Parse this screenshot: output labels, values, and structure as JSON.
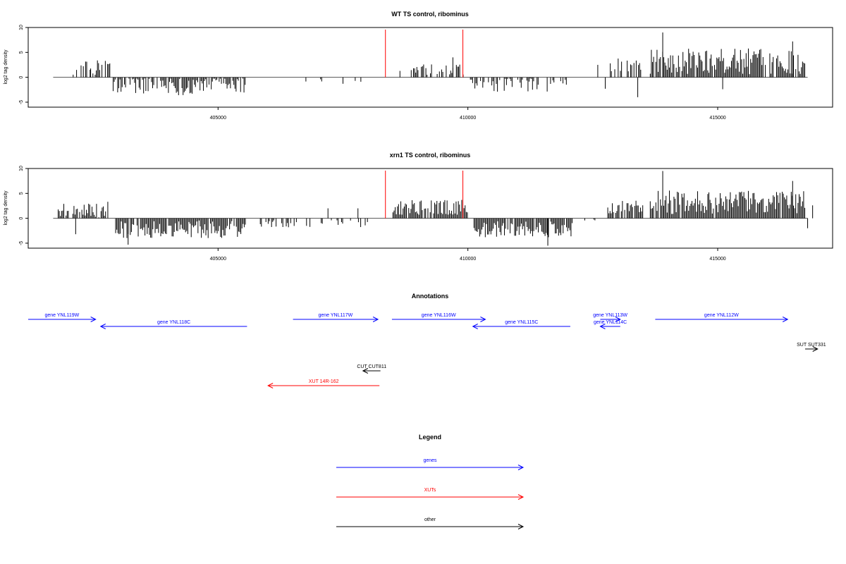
{
  "colors": {
    "gene": "#0000ff",
    "xut": "#ff0000",
    "other": "#000000",
    "marker": "#ff0000",
    "bars": "#000000"
  },
  "chart_data": [
    {
      "type": "bar",
      "title": "WT TS control, ribominus",
      "ylabel": "log2 tag density",
      "xlim": [
        401200,
        417300
      ],
      "ylim": [
        -6,
        10
      ],
      "xticks": [
        405000,
        410000,
        415000
      ],
      "yticks": [
        -5,
        0,
        5,
        10
      ],
      "markers_x": [
        408350,
        409900
      ],
      "segments": [
        {
          "start": 402100,
          "end": 402450,
          "mean": 1.5,
          "amp": 1.8,
          "density": 0.45
        },
        {
          "start": 402450,
          "end": 402850,
          "mean": 2.0,
          "amp": 1.5,
          "density": 0.6
        },
        {
          "start": 402900,
          "end": 405550,
          "mean": -1.6,
          "amp": 2.0,
          "density": 0.8
        },
        {
          "start": 406600,
          "end": 407300,
          "mean": -0.8,
          "amp": 0.6,
          "density": 0.15
        },
        {
          "start": 407700,
          "end": 408000,
          "mean": -0.8,
          "amp": 0.5,
          "density": 0.1
        },
        {
          "start": 408550,
          "end": 409950,
          "mean": 1.3,
          "amp": 1.4,
          "density": 0.45
        },
        {
          "start": 410050,
          "end": 410900,
          "mean": -1.4,
          "amp": 1.6,
          "density": 0.6
        },
        {
          "start": 411000,
          "end": 412000,
          "mean": -1.5,
          "amp": 1.4,
          "density": 0.55
        },
        {
          "start": 412850,
          "end": 413500,
          "mean": 2.2,
          "amp": 1.6,
          "density": 0.55
        },
        {
          "start": 413650,
          "end": 416750,
          "mean": 3.2,
          "amp": 2.6,
          "density": 0.9
        }
      ],
      "extra_bars": [
        [
          412600,
          2.5
        ],
        [
          412750,
          -2.3
        ],
        [
          413400,
          -4.0
        ],
        [
          413900,
          9.0
        ],
        [
          415100,
          -2.4
        ],
        [
          416500,
          7.2
        ],
        [
          409700,
          4.0
        ],
        [
          407500,
          -1.3
        ]
      ]
    },
    {
      "type": "bar",
      "title": "xrn1 TS control, ribominus",
      "ylabel": "log2 tag density",
      "xlim": [
        401200,
        417300
      ],
      "ylim": [
        -6,
        10
      ],
      "xticks": [
        405000,
        410000,
        415000
      ],
      "yticks": [
        -5,
        0,
        5,
        10
      ],
      "markers_x": [
        408350,
        409900
      ],
      "segments": [
        {
          "start": 401800,
          "end": 402800,
          "mean": 1.8,
          "amp": 1.6,
          "density": 0.9
        },
        {
          "start": 402950,
          "end": 405550,
          "mean": -2.2,
          "amp": 1.8,
          "density": 0.95
        },
        {
          "start": 405800,
          "end": 408000,
          "mean": -1.0,
          "amp": 0.8,
          "density": 0.3
        },
        {
          "start": 408500,
          "end": 410000,
          "mean": 2.2,
          "amp": 1.5,
          "density": 0.9
        },
        {
          "start": 410100,
          "end": 412100,
          "mean": -2.2,
          "amp": 1.6,
          "density": 0.95
        },
        {
          "start": 412250,
          "end": 412600,
          "mean": -0.8,
          "amp": 0.6,
          "density": 0.3
        },
        {
          "start": 412800,
          "end": 413500,
          "mean": 2.3,
          "amp": 1.3,
          "density": 0.9
        },
        {
          "start": 413650,
          "end": 416750,
          "mean": 3.2,
          "amp": 2.4,
          "density": 0.95
        }
      ],
      "extra_bars": [
        [
          402150,
          -3.2
        ],
        [
          403200,
          -5.3
        ],
        [
          407200,
          2.0
        ],
        [
          407800,
          2.0
        ],
        [
          413900,
          9.5
        ],
        [
          416500,
          7.5
        ],
        [
          416900,
          2.6
        ],
        [
          416800,
          -2.0
        ],
        [
          411600,
          -5.5
        ]
      ]
    }
  ],
  "annotations": {
    "title": "Annotations",
    "features": [
      {
        "label": "gene YNL119W",
        "start": 401200,
        "end": 402550,
        "strand": "+",
        "kind": "gene",
        "row": 0
      },
      {
        "label": "gene YNL118C",
        "start": 402650,
        "end": 405580,
        "strand": "-",
        "kind": "gene",
        "row": 1
      },
      {
        "label": "gene YNL117W",
        "start": 406500,
        "end": 408200,
        "strand": "+",
        "kind": "gene",
        "row": 0
      },
      {
        "label": "gene YNL116W",
        "start": 408480,
        "end": 410350,
        "strand": "+",
        "kind": "gene",
        "row": 0
      },
      {
        "label": "gene YNL115C",
        "start": 410100,
        "end": 412050,
        "strand": "-",
        "kind": "gene",
        "row": 1
      },
      {
        "label": "gene YNL113W",
        "start": 412650,
        "end": 413050,
        "strand": "+",
        "kind": "gene",
        "row": 0
      },
      {
        "label": "gene YNL114C",
        "start": 412650,
        "end": 413050,
        "strand": "-",
        "kind": "gene",
        "row": 1
      },
      {
        "label": "gene YNL112W",
        "start": 413750,
        "end": 416400,
        "strand": "+",
        "kind": "gene",
        "row": 0
      },
      {
        "label": "SUT SUT331",
        "start": 416750,
        "end": 417000,
        "strand": "+",
        "kind": "other",
        "row": 3
      },
      {
        "label": "CUT CUT811",
        "start": 407900,
        "end": 408250,
        "strand": "-",
        "kind": "other",
        "row": 5
      },
      {
        "label": "XUT 14R-162",
        "start": 406000,
        "end": 408230,
        "strand": "-",
        "kind": "xut",
        "row": 7
      }
    ]
  },
  "legend": {
    "title": "Legend",
    "items": [
      {
        "label": "genes",
        "kind": "gene"
      },
      {
        "label": "XUTs",
        "kind": "xut"
      },
      {
        "label": "other",
        "kind": "other"
      }
    ]
  }
}
